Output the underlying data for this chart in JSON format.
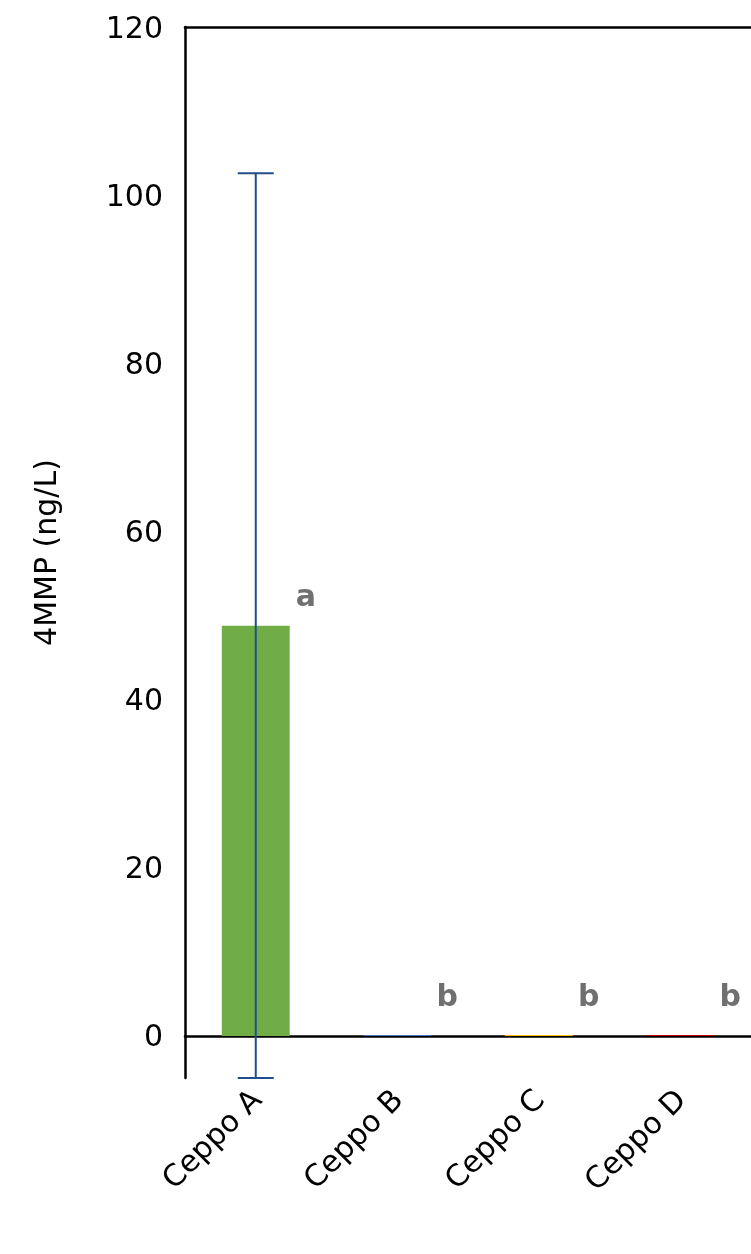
{
  "chart_data": {
    "type": "bar",
    "ylabel": "4MMP (ng/L)",
    "categories": [
      "Ceppo A",
      "Ceppo B",
      "Ceppo C",
      "Ceppo D"
    ],
    "values": [
      48.8,
      0.1,
      0.1,
      0.1
    ],
    "colors": [
      "#70ad47",
      "#4472c4",
      "#ffc000",
      "#c00000"
    ],
    "errors": [
      53.8,
      null,
      null,
      null
    ],
    "ylim": [
      -5,
      120
    ],
    "yticks": [
      0,
      20,
      40,
      60,
      80,
      100,
      120
    ],
    "grid": false,
    "annotations": [
      "a",
      "b",
      "b",
      "b"
    ]
  }
}
